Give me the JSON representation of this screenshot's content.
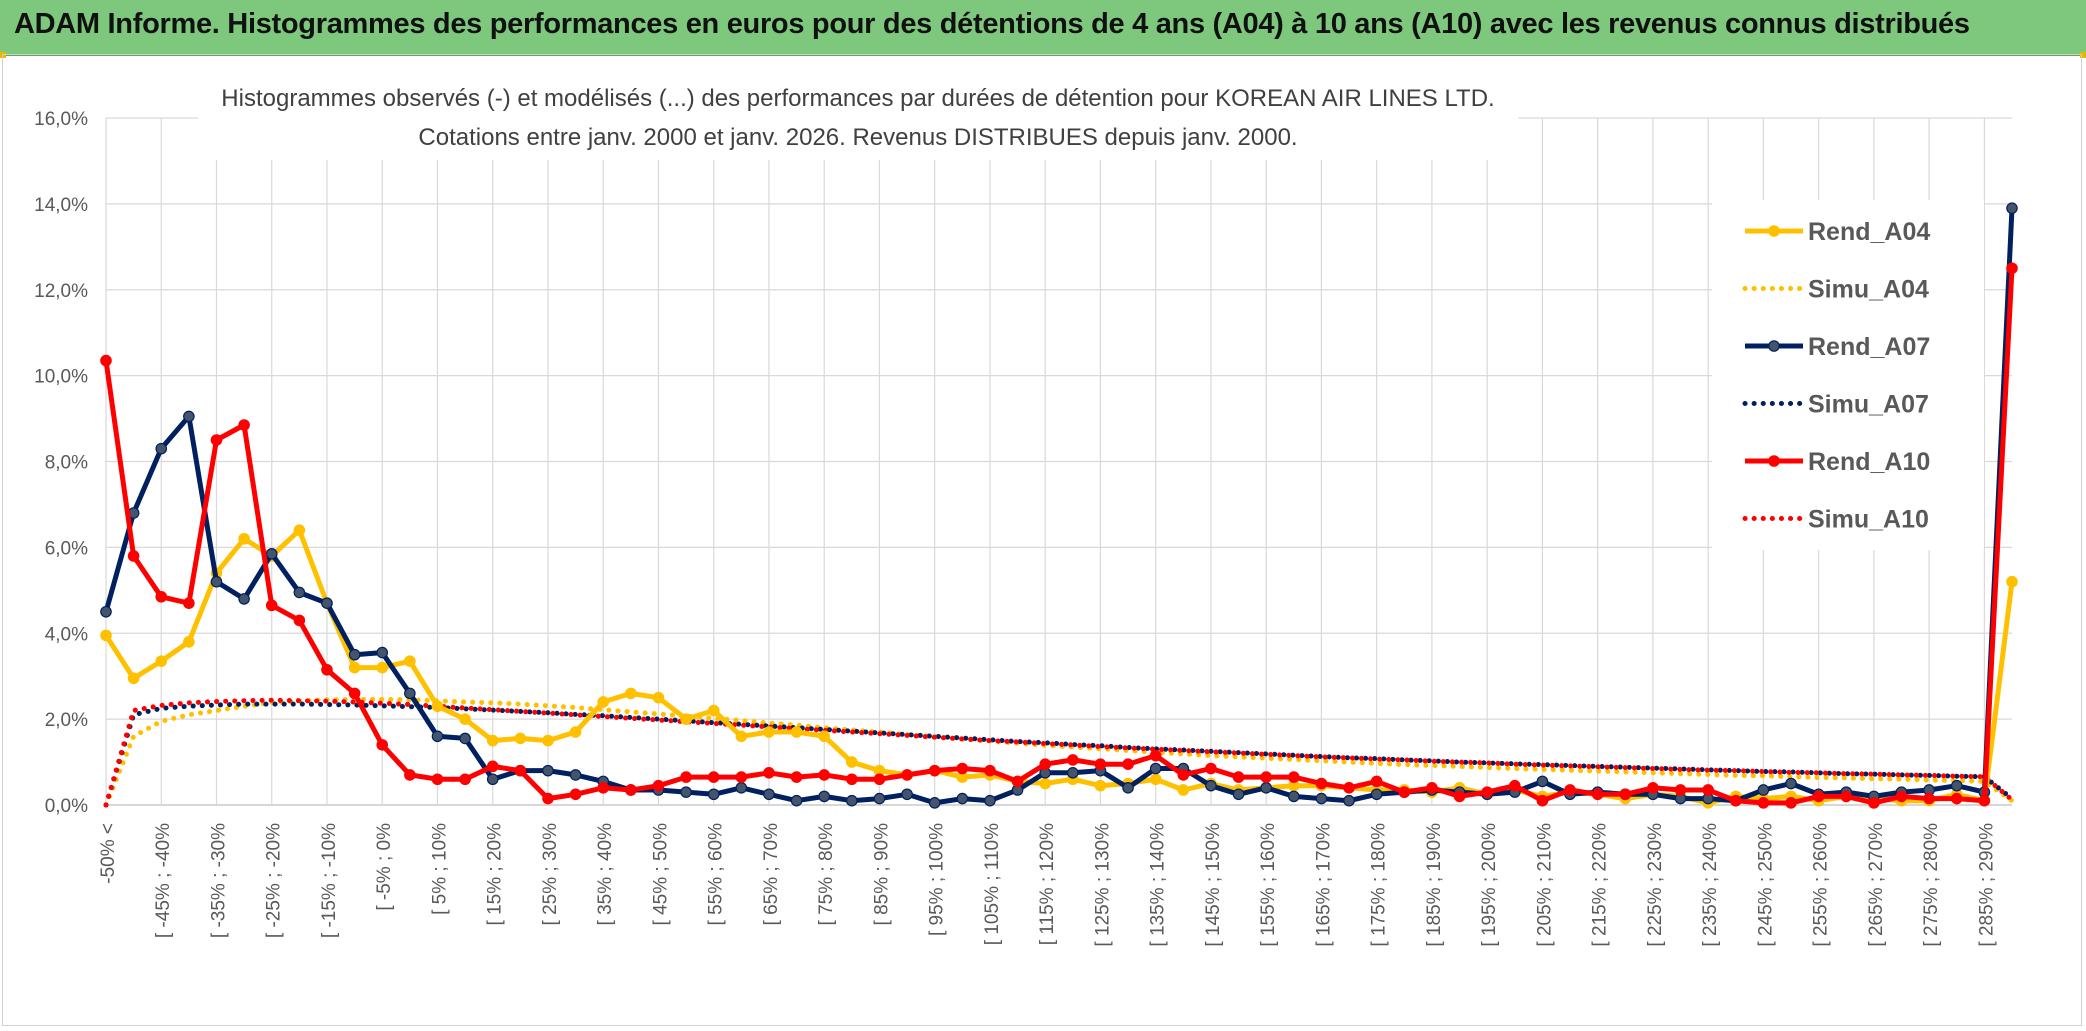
{
  "banner": {
    "title": "ADAM Informe. Histogrammes des performances en euros pour des détentions de 4 ans (A04) à 10 ans (A10) avec les revenus connus distribués"
  },
  "colors": {
    "banner_bg": "#7ec87e",
    "A04": "#ffc000",
    "A07": "#002060",
    "A10": "#ff0000",
    "marker_A07": "#44546a",
    "grid": "#d9d9d9"
  },
  "chart_data": {
    "type": "line",
    "title_line1": "Histogrammes observés (-) et modélisés (...) des performances par durées de détention pour KOREAN AIR LINES LTD.",
    "title_line2": "Cotations entre janv. 2000 et janv. 2026. Revenus DISTRIBUES depuis janv. 2000.",
    "ylim": [
      0,
      16
    ],
    "yticks": [
      0,
      2,
      4,
      6,
      8,
      10,
      12,
      14,
      16
    ],
    "ytick_labels": [
      "0,0%",
      "2,0%",
      "4,0%",
      "6,0%",
      "8,0%",
      "10,0%",
      "12,0%",
      "14,0%",
      "16,0%"
    ],
    "category_count": 70,
    "xtick_labels": [
      "-50% <",
      "[ -45% ; -40%",
      "[ -35% ; -30%",
      "[ -25% ; -20%",
      "[ -15% ; -10%",
      "[ -5% ; 0%",
      "[ 5% ; 10%",
      "[ 15% ; 20%",
      "[ 25% ; 30%",
      "[ 35% ; 40%",
      "[ 45% ; 50%",
      "[ 55% ; 60%",
      "[ 65% ; 70%",
      "[ 75% ; 80%",
      "[ 85% ; 90%",
      "[ 95% ; 100%",
      "[ 105% ; 110%",
      "[ 115% ; 120%",
      "[ 125% ; 130%",
      "[ 135% ; 140%",
      "[ 145% ; 150%",
      "[ 155% ; 160%",
      "[ 165% ; 170%",
      "[ 175% ; 180%",
      "[ 185% ; 190%",
      "[ 195% ; 200%",
      "[ 205% ; 210%",
      "[ 215% ; 220%",
      "[ 225% ; 230%",
      "[ 235% ; 240%",
      "[ 245% ; 250%",
      "[ 255% ; 260%",
      "[ 265% ; 270%",
      "[ 275% ; 280%",
      "[ 285% ; 290%"
    ],
    "legend": [
      "Rend_A04",
      "Simu_A04",
      "Rend_A07",
      "Simu_A07",
      "Rend_A10",
      "Simu_A10"
    ],
    "legend_position": "top-right",
    "series": [
      {
        "name": "Rend_A04",
        "style": "solid",
        "color": "#ffc000",
        "values": [
          3.95,
          2.95,
          3.35,
          3.8,
          5.4,
          6.2,
          5.8,
          6.4,
          4.7,
          3.2,
          3.2,
          3.35,
          2.3,
          2.0,
          1.5,
          1.55,
          1.5,
          1.7,
          2.4,
          2.6,
          2.5,
          2.0,
          2.2,
          1.6,
          1.7,
          1.7,
          1.6,
          1.0,
          0.8,
          0.7,
          0.8,
          0.65,
          0.7,
          0.55,
          0.5,
          0.6,
          0.45,
          0.5,
          0.6,
          0.35,
          0.5,
          0.35,
          0.4,
          0.45,
          0.45,
          0.4,
          0.35,
          0.35,
          0.3,
          0.4,
          0.25,
          0.35,
          0.2,
          0.3,
          0.25,
          0.15,
          0.25,
          0.2,
          0.05,
          0.2,
          0.15,
          0.2,
          0.1,
          0.2,
          0.15,
          0.1,
          0.1,
          0.25,
          0.1,
          5.2
        ]
      },
      {
        "name": "Simu_A04",
        "style": "dotted",
        "color": "#ffc000",
        "values": [
          0.0,
          1.6,
          1.95,
          2.1,
          2.2,
          2.3,
          2.38,
          2.42,
          2.45,
          2.46,
          2.46,
          2.45,
          2.43,
          2.4,
          2.38,
          2.35,
          2.31,
          2.27,
          2.22,
          2.17,
          2.12,
          2.07,
          2.02,
          1.97,
          1.91,
          1.86,
          1.8,
          1.75,
          1.7,
          1.64,
          1.59,
          1.54,
          1.49,
          1.44,
          1.39,
          1.35,
          1.31,
          1.27,
          1.23,
          1.19,
          1.15,
          1.12,
          1.09,
          1.06,
          1.03,
          1.0,
          0.97,
          0.94,
          0.92,
          0.9,
          0.87,
          0.85,
          0.83,
          0.81,
          0.79,
          0.77,
          0.75,
          0.73,
          0.71,
          0.69,
          0.68,
          0.66,
          0.64,
          0.63,
          0.61,
          0.6,
          0.58,
          0.57,
          0.55,
          0.1
        ]
      },
      {
        "name": "Rend_A07",
        "style": "solid",
        "color": "#002060",
        "values": [
          4.5,
          6.8,
          8.3,
          9.05,
          5.2,
          4.8,
          5.85,
          4.95,
          4.7,
          3.5,
          3.55,
          2.6,
          1.6,
          1.55,
          0.6,
          0.8,
          0.8,
          0.7,
          0.55,
          0.35,
          0.35,
          0.3,
          0.25,
          0.4,
          0.25,
          0.1,
          0.2,
          0.1,
          0.15,
          0.25,
          0.05,
          0.15,
          0.1,
          0.35,
          0.75,
          0.75,
          0.8,
          0.4,
          0.85,
          0.85,
          0.45,
          0.25,
          0.4,
          0.2,
          0.15,
          0.1,
          0.25,
          0.3,
          0.35,
          0.3,
          0.25,
          0.3,
          0.55,
          0.25,
          0.3,
          0.25,
          0.25,
          0.15,
          0.15,
          0.1,
          0.35,
          0.5,
          0.25,
          0.3,
          0.2,
          0.3,
          0.35,
          0.45,
          0.3,
          13.9
        ]
      },
      {
        "name": "Simu_A07",
        "style": "dotted",
        "color": "#002060",
        "values": [
          0.0,
          2.1,
          2.25,
          2.3,
          2.33,
          2.35,
          2.35,
          2.35,
          2.34,
          2.33,
          2.31,
          2.29,
          2.27,
          2.24,
          2.21,
          2.18,
          2.15,
          2.11,
          2.08,
          2.04,
          2.0,
          1.96,
          1.92,
          1.88,
          1.84,
          1.8,
          1.76,
          1.72,
          1.68,
          1.64,
          1.6,
          1.56,
          1.52,
          1.48,
          1.45,
          1.41,
          1.38,
          1.34,
          1.31,
          1.28,
          1.25,
          1.22,
          1.19,
          1.16,
          1.13,
          1.1,
          1.08,
          1.05,
          1.03,
          1.0,
          0.98,
          0.96,
          0.94,
          0.92,
          0.9,
          0.88,
          0.86,
          0.84,
          0.82,
          0.8,
          0.78,
          0.77,
          0.75,
          0.73,
          0.72,
          0.7,
          0.69,
          0.67,
          0.66,
          0.15
        ]
      },
      {
        "name": "Rend_A10",
        "style": "solid",
        "color": "#ff0000",
        "values": [
          10.35,
          5.8,
          4.85,
          4.7,
          8.5,
          8.85,
          4.65,
          4.3,
          3.15,
          2.6,
          1.4,
          0.7,
          0.6,
          0.6,
          0.9,
          0.8,
          0.15,
          0.25,
          0.4,
          0.35,
          0.45,
          0.65,
          0.65,
          0.65,
          0.75,
          0.65,
          0.7,
          0.6,
          0.6,
          0.7,
          0.8,
          0.85,
          0.8,
          0.55,
          0.95,
          1.05,
          0.95,
          0.95,
          1.15,
          0.7,
          0.85,
          0.65,
          0.65,
          0.65,
          0.5,
          0.4,
          0.55,
          0.3,
          0.4,
          0.2,
          0.3,
          0.45,
          0.1,
          0.35,
          0.25,
          0.25,
          0.4,
          0.35,
          0.35,
          0.1,
          0.05,
          0.05,
          0.2,
          0.2,
          0.05,
          0.2,
          0.15,
          0.15,
          0.1,
          12.5
        ]
      },
      {
        "name": "Simu_A10",
        "style": "dotted",
        "color": "#ff0000",
        "values": [
          0.0,
          2.2,
          2.32,
          2.38,
          2.41,
          2.43,
          2.44,
          2.43,
          2.42,
          2.4,
          2.37,
          2.34,
          2.3,
          2.26,
          2.22,
          2.18,
          2.14,
          2.1,
          2.06,
          2.02,
          1.98,
          1.94,
          1.9,
          1.86,
          1.82,
          1.78,
          1.74,
          1.7,
          1.66,
          1.62,
          1.58,
          1.54,
          1.5,
          1.47,
          1.43,
          1.4,
          1.36,
          1.33,
          1.3,
          1.27,
          1.24,
          1.21,
          1.18,
          1.15,
          1.12,
          1.1,
          1.07,
          1.05,
          1.02,
          1.0,
          0.98,
          0.95,
          0.93,
          0.91,
          0.89,
          0.87,
          0.85,
          0.83,
          0.81,
          0.8,
          0.78,
          0.76,
          0.75,
          0.73,
          0.72,
          0.7,
          0.69,
          0.67,
          0.66,
          0.12
        ]
      }
    ]
  }
}
